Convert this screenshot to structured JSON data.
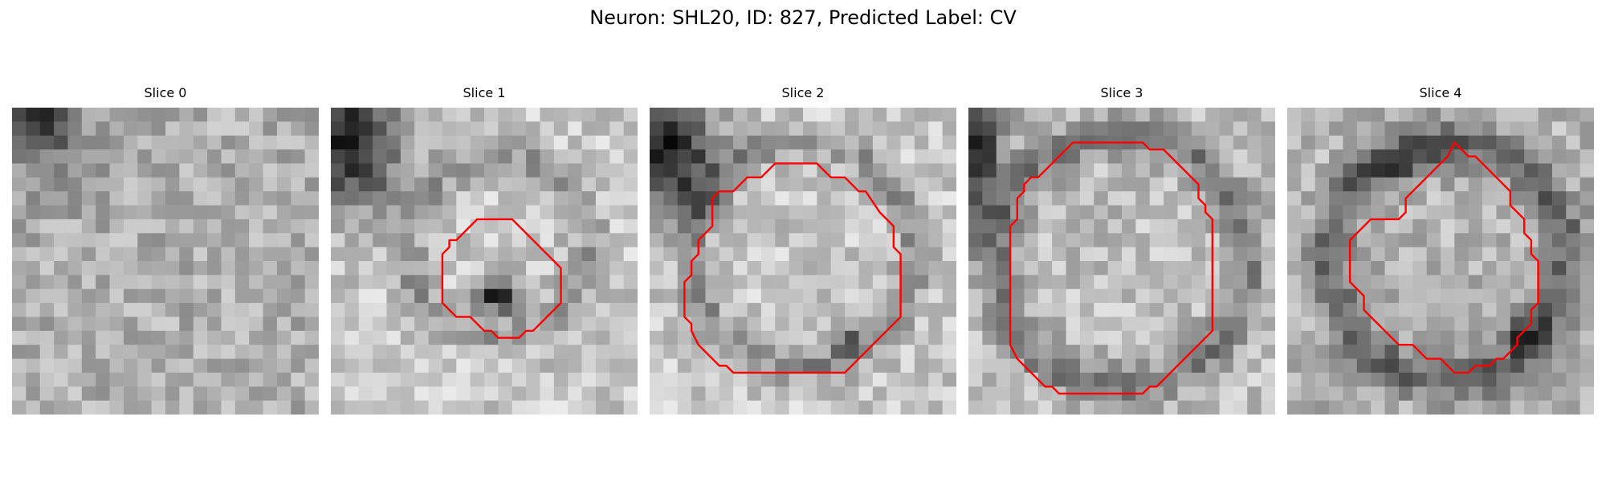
{
  "figure": {
    "title": "Neuron: SHL20, ID: 827, Predicted Label: CV"
  },
  "panels": [
    {
      "title": "Slice 0",
      "has_contour": false,
      "contour": []
    },
    {
      "title": "Slice 1",
      "has_contour": true,
      "contour": [
        [
          11.0,
          8.0
        ],
        [
          13.0,
          8.0
        ],
        [
          16.5,
          11.5
        ],
        [
          16.5,
          14.0
        ],
        [
          15.5,
          15.0
        ],
        [
          14.5,
          16.0
        ],
        [
          14.0,
          16.0
        ],
        [
          13.5,
          16.5
        ],
        [
          12.0,
          16.5
        ],
        [
          11.5,
          16.0
        ],
        [
          11.0,
          16.0
        ],
        [
          10.0,
          15.0
        ],
        [
          9.0,
          15.0
        ],
        [
          8.0,
          14.0
        ],
        [
          8.0,
          10.5
        ],
        [
          8.5,
          10.0
        ],
        [
          8.5,
          9.5
        ],
        [
          9.0,
          9.5
        ],
        [
          10.5,
          8.0
        ]
      ]
    },
    {
      "title": "Slice 2",
      "has_contour": true,
      "contour": [
        [
          10.0,
          4.0
        ],
        [
          12.0,
          4.0
        ],
        [
          13.0,
          5.0
        ],
        [
          14.0,
          5.0
        ],
        [
          15.0,
          6.0
        ],
        [
          15.5,
          6.0
        ],
        [
          16.5,
          7.5
        ],
        [
          17.0,
          8.0
        ],
        [
          17.5,
          8.5
        ],
        [
          17.5,
          10.0
        ],
        [
          18.0,
          10.5
        ],
        [
          18.0,
          15.0
        ],
        [
          16.5,
          16.5
        ],
        [
          15.5,
          17.5
        ],
        [
          15.0,
          18.0
        ],
        [
          14.5,
          18.5
        ],
        [
          14.0,
          19.0
        ],
        [
          6.0,
          19.0
        ],
        [
          5.5,
          18.5
        ],
        [
          5.0,
          18.5
        ],
        [
          4.0,
          17.5
        ],
        [
          3.5,
          17.0
        ],
        [
          3.0,
          16.0
        ],
        [
          3.0,
          15.5
        ],
        [
          2.5,
          15.0
        ],
        [
          2.5,
          12.5
        ],
        [
          3.0,
          12.0
        ],
        [
          3.0,
          11.0
        ],
        [
          3.5,
          10.5
        ],
        [
          3.5,
          9.5
        ],
        [
          4.5,
          8.5
        ],
        [
          4.5,
          6.5
        ],
        [
          5.0,
          6.0
        ],
        [
          6.0,
          6.0
        ],
        [
          6.5,
          5.5
        ],
        [
          7.0,
          5.0
        ],
        [
          8.0,
          5.0
        ],
        [
          9.0,
          4.0
        ]
      ]
    },
    {
      "title": "Slice 3",
      "has_contour": true,
      "contour": [
        [
          7.5,
          2.5
        ],
        [
          12.5,
          2.5
        ],
        [
          13.0,
          3.0
        ],
        [
          14.0,
          3.0
        ],
        [
          15.0,
          4.0
        ],
        [
          15.5,
          4.5
        ],
        [
          16.5,
          5.5
        ],
        [
          16.5,
          6.5
        ],
        [
          17.0,
          7.0
        ],
        [
          17.0,
          7.5
        ],
        [
          17.5,
          8.0
        ],
        [
          17.5,
          16.0
        ],
        [
          16.5,
          17.0
        ],
        [
          15.5,
          18.0
        ],
        [
          14.5,
          19.0
        ],
        [
          14.0,
          19.5
        ],
        [
          13.5,
          20.0
        ],
        [
          13.0,
          20.0
        ],
        [
          12.5,
          20.5
        ],
        [
          6.5,
          20.5
        ],
        [
          6.0,
          20.0
        ],
        [
          5.5,
          20.0
        ],
        [
          5.0,
          19.5
        ],
        [
          4.5,
          19.0
        ],
        [
          4.0,
          18.5
        ],
        [
          3.5,
          18.0
        ],
        [
          3.0,
          17.0
        ],
        [
          3.0,
          8.5
        ],
        [
          3.5,
          8.0
        ],
        [
          3.5,
          6.5
        ],
        [
          4.0,
          6.0
        ],
        [
          4.0,
          5.5
        ],
        [
          4.5,
          5.0
        ],
        [
          5.0,
          5.0
        ],
        [
          5.5,
          4.5
        ],
        [
          6.0,
          4.0
        ],
        [
          6.5,
          3.5
        ],
        [
          7.0,
          3.0
        ]
      ]
    },
    {
      "title": "Slice 4",
      "has_contour": true,
      "contour": [
        [
          12.0,
          2.5
        ],
        [
          13.0,
          3.5
        ],
        [
          13.5,
          3.5
        ],
        [
          14.0,
          4.0
        ],
        [
          14.5,
          4.5
        ],
        [
          15.0,
          5.0
        ],
        [
          15.5,
          5.5
        ],
        [
          16.0,
          6.0
        ],
        [
          16.0,
          7.0
        ],
        [
          17.0,
          8.0
        ],
        [
          17.0,
          9.0
        ],
        [
          17.5,
          9.5
        ],
        [
          17.5,
          10.5
        ],
        [
          18.0,
          11.0
        ],
        [
          18.0,
          14.0
        ],
        [
          17.5,
          14.5
        ],
        [
          17.5,
          15.5
        ],
        [
          17.0,
          16.0
        ],
        [
          16.5,
          16.5
        ],
        [
          16.5,
          17.0
        ],
        [
          15.5,
          18.0
        ],
        [
          15.0,
          18.0
        ],
        [
          14.5,
          18.5
        ],
        [
          13.5,
          18.5
        ],
        [
          13.0,
          19.0
        ],
        [
          12.0,
          19.0
        ],
        [
          11.5,
          18.5
        ],
        [
          11.0,
          18.0
        ],
        [
          10.0,
          18.0
        ],
        [
          9.5,
          17.5
        ],
        [
          9.0,
          17.0
        ],
        [
          8.0,
          17.0
        ],
        [
          7.5,
          16.5
        ],
        [
          7.0,
          16.0
        ],
        [
          6.5,
          15.5
        ],
        [
          6.0,
          15.0
        ],
        [
          5.5,
          14.5
        ],
        [
          5.5,
          13.5
        ],
        [
          4.5,
          12.5
        ],
        [
          4.5,
          9.5
        ],
        [
          5.0,
          9.0
        ],
        [
          5.5,
          8.5
        ],
        [
          6.0,
          8.0
        ],
        [
          8.0,
          8.0
        ],
        [
          8.5,
          7.5
        ],
        [
          8.5,
          6.5
        ],
        [
          9.0,
          6.0
        ],
        [
          9.5,
          5.5
        ],
        [
          10.0,
          5.0
        ],
        [
          10.5,
          4.5
        ],
        [
          11.0,
          4.0
        ],
        [
          11.5,
          3.5
        ]
      ]
    }
  ],
  "colors": {
    "contour": "#ff0000",
    "background": "#ffffff"
  }
}
